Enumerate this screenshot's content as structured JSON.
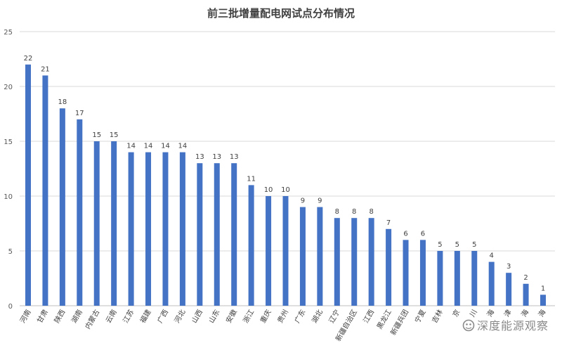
{
  "chart_data": {
    "type": "bar",
    "title": "前三批增量配电网试点分布情况",
    "xlabel": "",
    "ylabel": "",
    "ylim": [
      0,
      25
    ],
    "yticks": [
      0,
      5,
      10,
      15,
      20,
      25
    ],
    "grid": true,
    "legend": "none",
    "bar_color": "#4472C4",
    "categories": [
      "河南",
      "甘肃",
      "陕西",
      "湖南",
      "内蒙古",
      "云南",
      "江苏",
      "福建",
      "广西",
      "河北",
      "山西",
      "山东",
      "安徽",
      "浙江",
      "重庆",
      "贵州",
      "广东",
      "湖北",
      "辽宁",
      "新疆自治区",
      "江西",
      "黑龙江",
      "新疆兵团",
      "宁夏",
      "吉林",
      "京",
      "川",
      "海",
      "津",
      "海",
      "海"
    ],
    "values": [
      22,
      21,
      18,
      17,
      15,
      15,
      14,
      14,
      14,
      14,
      13,
      13,
      13,
      11,
      10,
      10,
      9,
      9,
      8,
      8,
      8,
      7,
      6,
      6,
      5,
      5,
      5,
      4,
      3,
      2,
      1
    ]
  },
  "watermark": {
    "text": "深度能源观察",
    "icon": "wechat-logo-icon"
  }
}
